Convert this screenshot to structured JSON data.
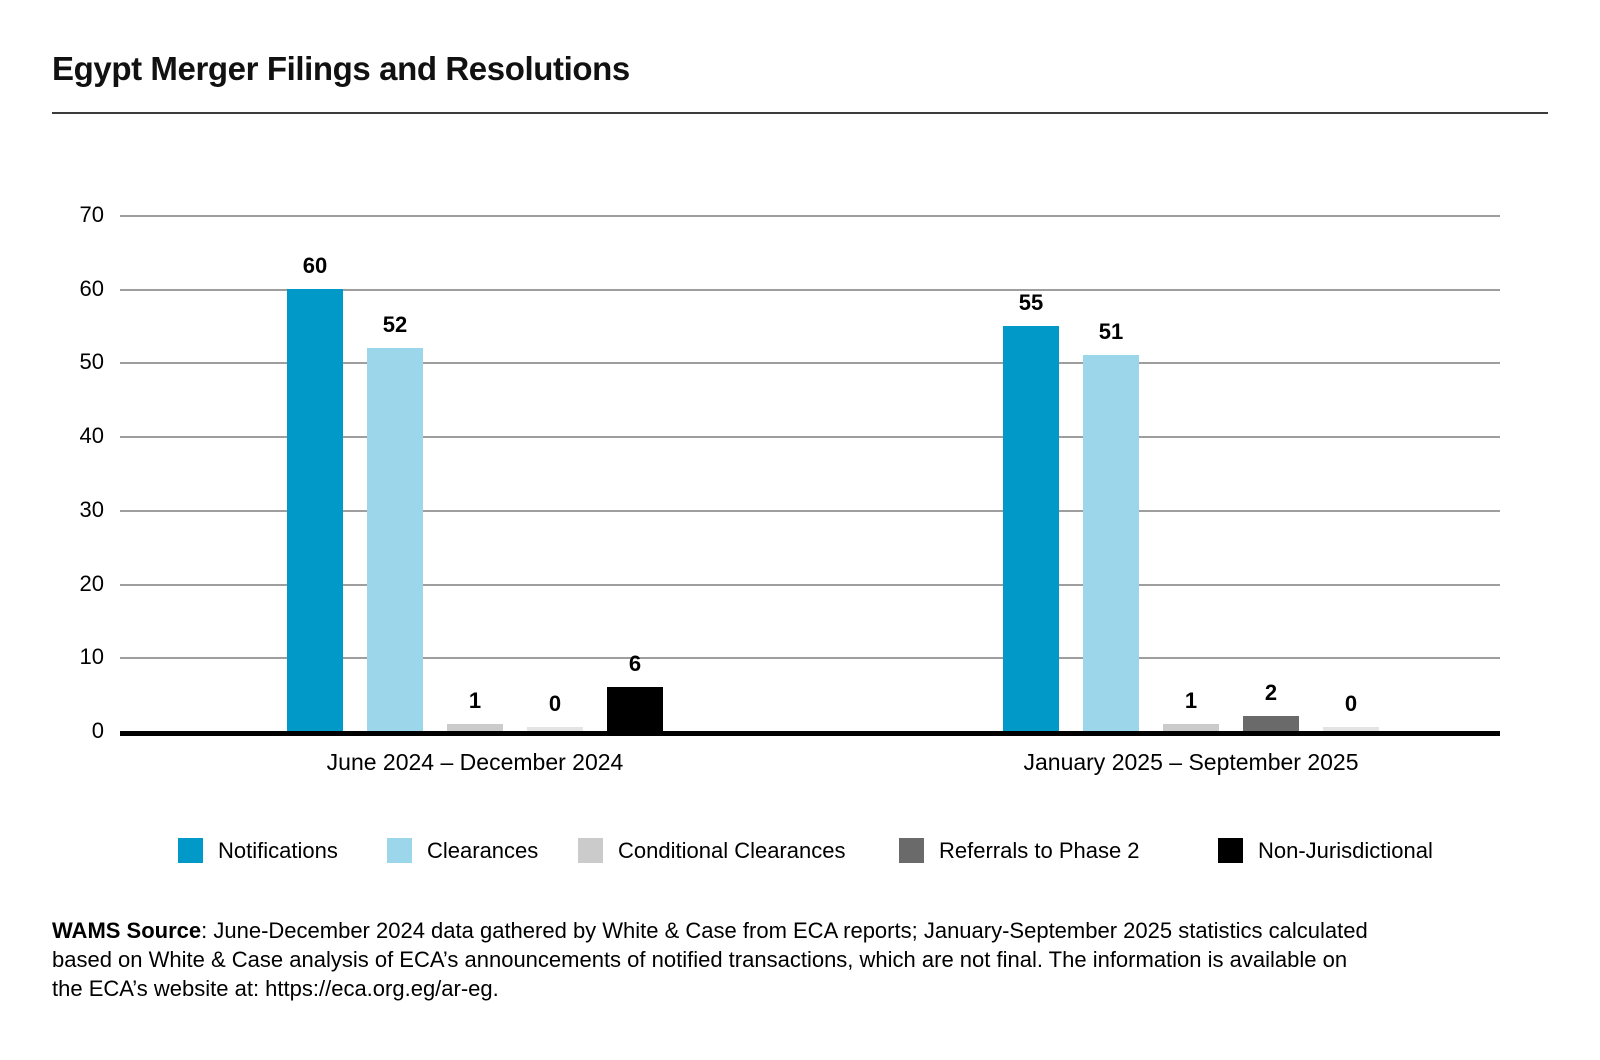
{
  "chart_data": {
    "type": "bar",
    "title": "Egypt Merger Filings and Resolutions",
    "categories": [
      "June 2024 – December 2024",
      "January 2025 – September 2025"
    ],
    "series": [
      {
        "name": "Notifications",
        "color": "#0099C8",
        "values": [
          60,
          55
        ]
      },
      {
        "name": "Clearances",
        "color": "#9CD6EA",
        "values": [
          52,
          51
        ]
      },
      {
        "name": "Conditional Clearances",
        "color": "#CBCBCB",
        "values": [
          1,
          1
        ]
      },
      {
        "name": "Referrals to Phase 2",
        "color": "#6A6A6A",
        "values": [
          0,
          2
        ]
      },
      {
        "name": "Non-Jurisdictional",
        "color": "#000000",
        "values": [
          6,
          0
        ]
      }
    ],
    "ylim": [
      0,
      70
    ],
    "ytick_step": 10,
    "yticks": [
      0,
      10,
      20,
      30,
      40,
      50,
      60,
      70
    ],
    "grid": true,
    "gridline_color": "#9E9E9E",
    "axis_color": "#000000",
    "legend_position": "bottom",
    "value_labels": true
  },
  "footer": {
    "source_label": "WAMS Source",
    "line1_rest": ": June-December 2024 data gathered by White & Case from ECA reports; January-September 2025 statistics calculated",
    "line2": "based on White & Case analysis of ECA’s announcements of notified transactions, which are not final. The information is available on",
    "line3": "the ECA’s website at: https://eca.org.eg/ar-eg."
  }
}
